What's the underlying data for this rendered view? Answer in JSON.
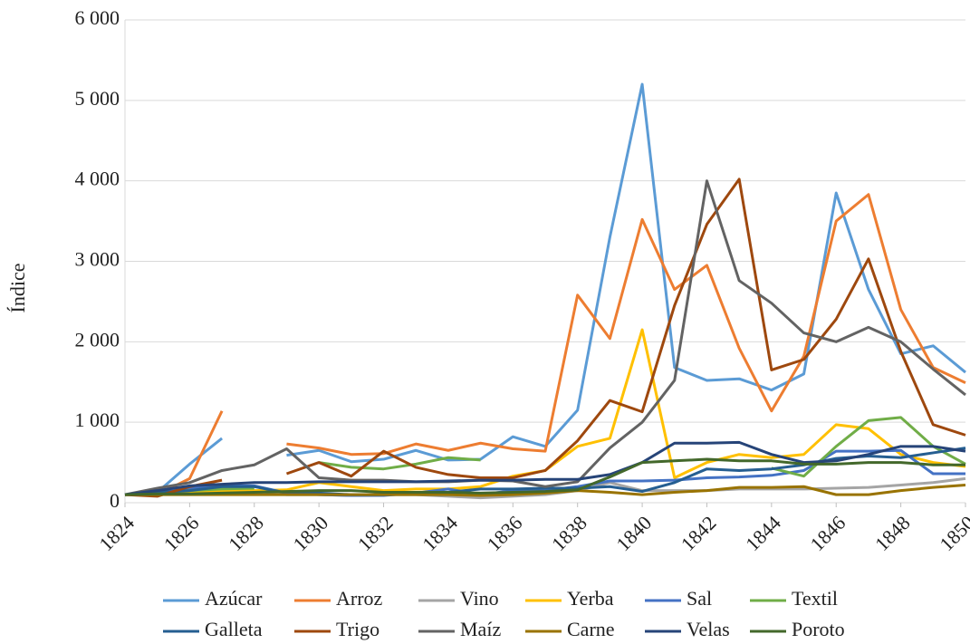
{
  "chart_data": {
    "type": "line",
    "y_label": "Índice",
    "x": [
      1824,
      1825,
      1826,
      1827,
      1828,
      1829,
      1830,
      1831,
      1832,
      1833,
      1834,
      1835,
      1836,
      1837,
      1838,
      1839,
      1840,
      1841,
      1842,
      1843,
      1844,
      1845,
      1846,
      1847,
      1848,
      1849,
      1850
    ],
    "xlim": [
      1824,
      1850
    ],
    "xticks": [
      1824,
      1826,
      1828,
      1830,
      1832,
      1834,
      1836,
      1838,
      1840,
      1842,
      1844,
      1846,
      1848,
      1850
    ],
    "ylim": [
      0,
      6000
    ],
    "yticks": [
      0,
      {
        "value": 1000,
        "label": "1 000"
      },
      {
        "value": 2000,
        "label": "2 000"
      },
      {
        "value": 3000,
        "label": "3 000"
      },
      {
        "value": 4000,
        "label": "4 000"
      },
      {
        "value": 5000,
        "label": "5 000"
      },
      {
        "value": 6000,
        "label": "6 000"
      }
    ],
    "grid": true,
    "legend": "bottom",
    "series": [
      {
        "name": "Azúcar",
        "color": "#5b9bd5",
        "values": [
          100,
          130,
          480,
          800,
          null,
          590,
          650,
          510,
          540,
          650,
          530,
          540,
          820,
          700,
          1150,
          3300,
          5200,
          1680,
          1520,
          1540,
          1400,
          1600,
          3850,
          2650,
          1850,
          1950,
          1620
        ]
      },
      {
        "name": "Arroz",
        "color": "#ed7d31",
        "values": [
          100,
          100,
          300,
          1140,
          null,
          730,
          680,
          600,
          610,
          730,
          650,
          740,
          670,
          640,
          2580,
          2040,
          3520,
          2650,
          2950,
          1920,
          1140,
          1820,
          3500,
          3830,
          2400,
          1680,
          1490
        ]
      },
      {
        "name": "Vino",
        "color": "#a5a5a5",
        "values": [
          100,
          100,
          130,
          150,
          150,
          100,
          100,
          90,
          100,
          100,
          80,
          60,
          80,
          100,
          150,
          250,
          150,
          150,
          150,
          170,
          170,
          170,
          180,
          190,
          220,
          250,
          300
        ]
      },
      {
        "name": "Yerba",
        "color": "#ffc000",
        "values": [
          100,
          110,
          120,
          150,
          150,
          160,
          250,
          200,
          150,
          170,
          170,
          200,
          330,
          400,
          700,
          800,
          2150,
          310,
          500,
          600,
          560,
          600,
          970,
          920,
          600,
          500,
          450
        ]
      },
      {
        "name": "Sal",
        "color": "#4472c4",
        "values": [
          100,
          120,
          180,
          210,
          210,
          120,
          100,
          90,
          90,
          120,
          170,
          100,
          150,
          150,
          200,
          270,
          270,
          280,
          310,
          320,
          340,
          400,
          640,
          640,
          650,
          360,
          360
        ]
      },
      {
        "name": "Textil",
        "color": "#70ad47",
        "values": [
          100,
          120,
          150,
          170,
          180,
          null,
          500,
          440,
          420,
          480,
          560,
          530,
          null,
          null,
          null,
          null,
          null,
          null,
          null,
          null,
          430,
          330,
          700,
          1020,
          1060,
          700,
          480
        ]
      },
      {
        "name": "Galleta",
        "color": "#255e91",
        "values": [
          100,
          130,
          150,
          200,
          200,
          120,
          120,
          100,
          100,
          110,
          130,
          170,
          170,
          180,
          180,
          200,
          140,
          250,
          420,
          400,
          420,
          470,
          550,
          580,
          560,
          620,
          680
        ]
      },
      {
        "name": "Trigo",
        "color": "#9e480e",
        "values": [
          100,
          80,
          200,
          280,
          null,
          360,
          500,
          330,
          640,
          440,
          350,
          310,
          310,
          400,
          770,
          1270,
          1130,
          2450,
          3460,
          4020,
          1650,
          1780,
          2280,
          3030,
          1880,
          970,
          840
        ]
      },
      {
        "name": "Maíz",
        "color": "#636363",
        "values": [
          100,
          180,
          250,
          400,
          470,
          670,
          310,
          280,
          280,
          260,
          260,
          280,
          270,
          200,
          260,
          680,
          1000,
          1520,
          4000,
          2760,
          2480,
          2110,
          2000,
          2180,
          2000,
          1660,
          1340
        ]
      },
      {
        "name": "Carne",
        "color": "#997300",
        "values": [
          100,
          100,
          100,
          100,
          100,
          100,
          100,
          100,
          100,
          100,
          100,
          90,
          100,
          120,
          150,
          130,
          100,
          130,
          150,
          190,
          190,
          200,
          100,
          100,
          150,
          190,
          220
        ]
      },
      {
        "name": "Velas",
        "color": "#264478",
        "values": [
          100,
          150,
          210,
          230,
          250,
          250,
          260,
          260,
          260,
          260,
          270,
          280,
          280,
          290,
          290,
          350,
          500,
          740,
          740,
          750,
          600,
          500,
          520,
          600,
          700,
          700,
          640
        ]
      },
      {
        "name": "Poroto",
        "color": "#43682b",
        "values": [
          100,
          110,
          110,
          120,
          130,
          140,
          150,
          150,
          130,
          130,
          130,
          120,
          130,
          140,
          160,
          320,
          500,
          520,
          540,
          520,
          520,
          480,
          480,
          500,
          500,
          470,
          470
        ]
      }
    ]
  }
}
